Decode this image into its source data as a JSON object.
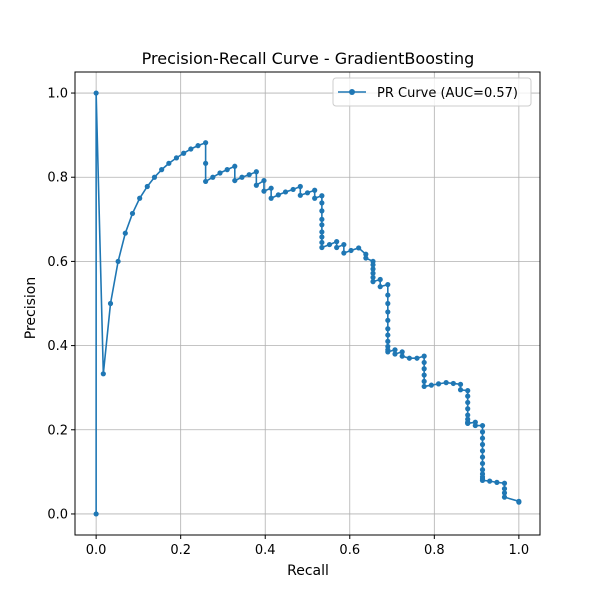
{
  "chart_data": {
    "type": "line",
    "title": "Precision-Recall Curve - GradientBoosting",
    "xlabel": "Recall",
    "ylabel": "Precision",
    "xlim": [
      -0.05,
      1.05
    ],
    "ylim": [
      -0.05,
      1.05
    ],
    "xticks": [
      0.0,
      0.2,
      0.4,
      0.6,
      0.8,
      1.0
    ],
    "yticks": [
      0.0,
      0.2,
      0.4,
      0.6,
      0.8,
      1.0
    ],
    "tick_labels_x": [
      "0.0",
      "0.2",
      "0.4",
      "0.6",
      "0.8",
      "1.0"
    ],
    "tick_labels_y": [
      "0.0",
      "0.2",
      "0.4",
      "0.6",
      "0.8",
      "1.0"
    ],
    "grid": true,
    "legend_position": "top-right",
    "color": "#1f77b4",
    "series": [
      {
        "name": "PR Curve (AUC=0.57)",
        "marker": "circle",
        "x": [
          0.0,
          0.0,
          0.017,
          0.034,
          0.052,
          0.069,
          0.086,
          0.103,
          0.121,
          0.138,
          0.155,
          0.172,
          0.19,
          0.207,
          0.224,
          0.241,
          0.259,
          0.259,
          0.259,
          0.276,
          0.293,
          0.31,
          0.328,
          0.328,
          0.345,
          0.362,
          0.379,
          0.379,
          0.397,
          0.397,
          0.414,
          0.414,
          0.431,
          0.448,
          0.466,
          0.483,
          0.483,
          0.5,
          0.517,
          0.517,
          0.534,
          0.534,
          0.534,
          0.534,
          0.534,
          0.534,
          0.534,
          0.534,
          0.534,
          0.552,
          0.569,
          0.569,
          0.586,
          0.586,
          0.603,
          0.621,
          0.638,
          0.638,
          0.655,
          0.655,
          0.655,
          0.655,
          0.655,
          0.655,
          0.672,
          0.672,
          0.69,
          0.69,
          0.69,
          0.69,
          0.69,
          0.69,
          0.69,
          0.69,
          0.69,
          0.69,
          0.69,
          0.707,
          0.707,
          0.724,
          0.724,
          0.741,
          0.759,
          0.776,
          0.776,
          0.776,
          0.776,
          0.776,
          0.776,
          0.793,
          0.81,
          0.828,
          0.845,
          0.862,
          0.862,
          0.879,
          0.879,
          0.879,
          0.879,
          0.879,
          0.879,
          0.879,
          0.879,
          0.879,
          0.897,
          0.897,
          0.914,
          0.914,
          0.914,
          0.914,
          0.914,
          0.914,
          0.914,
          0.914,
          0.914,
          0.914,
          0.914,
          0.914,
          0.914,
          0.931,
          0.948,
          0.966,
          0.966,
          0.966,
          0.966,
          1.0,
          1.0
        ],
        "y": [
          0.0,
          1.0,
          0.333,
          0.5,
          0.6,
          0.667,
          0.714,
          0.75,
          0.778,
          0.8,
          0.818,
          0.833,
          0.846,
          0.857,
          0.867,
          0.875,
          0.882,
          0.833,
          0.79,
          0.8,
          0.81,
          0.818,
          0.826,
          0.792,
          0.8,
          0.806,
          0.813,
          0.781,
          0.792,
          0.767,
          0.774,
          0.75,
          0.758,
          0.765,
          0.771,
          0.778,
          0.757,
          0.763,
          0.769,
          0.75,
          0.756,
          0.739,
          0.72,
          0.7,
          0.687,
          0.67,
          0.658,
          0.645,
          0.633,
          0.64,
          0.647,
          0.633,
          0.64,
          0.62,
          0.626,
          0.632,
          0.617,
          0.608,
          0.6,
          0.592,
          0.582,
          0.572,
          0.562,
          0.552,
          0.557,
          0.54,
          0.545,
          0.52,
          0.5,
          0.48,
          0.46,
          0.44,
          0.425,
          0.41,
          0.398,
          0.39,
          0.385,
          0.39,
          0.38,
          0.385,
          0.375,
          0.37,
          0.37,
          0.375,
          0.36,
          0.345,
          0.33,
          0.315,
          0.303,
          0.306,
          0.309,
          0.312,
          0.31,
          0.308,
          0.295,
          0.293,
          0.28,
          0.265,
          0.25,
          0.235,
          0.225,
          0.218,
          0.216,
          0.215,
          0.218,
          0.21,
          0.21,
          0.195,
          0.18,
          0.165,
          0.15,
          0.135,
          0.12,
          0.105,
          0.095,
          0.088,
          0.083,
          0.08,
          0.08,
          0.078,
          0.075,
          0.073,
          0.06,
          0.05,
          0.04,
          0.03,
          0.028
        ]
      }
    ]
  }
}
